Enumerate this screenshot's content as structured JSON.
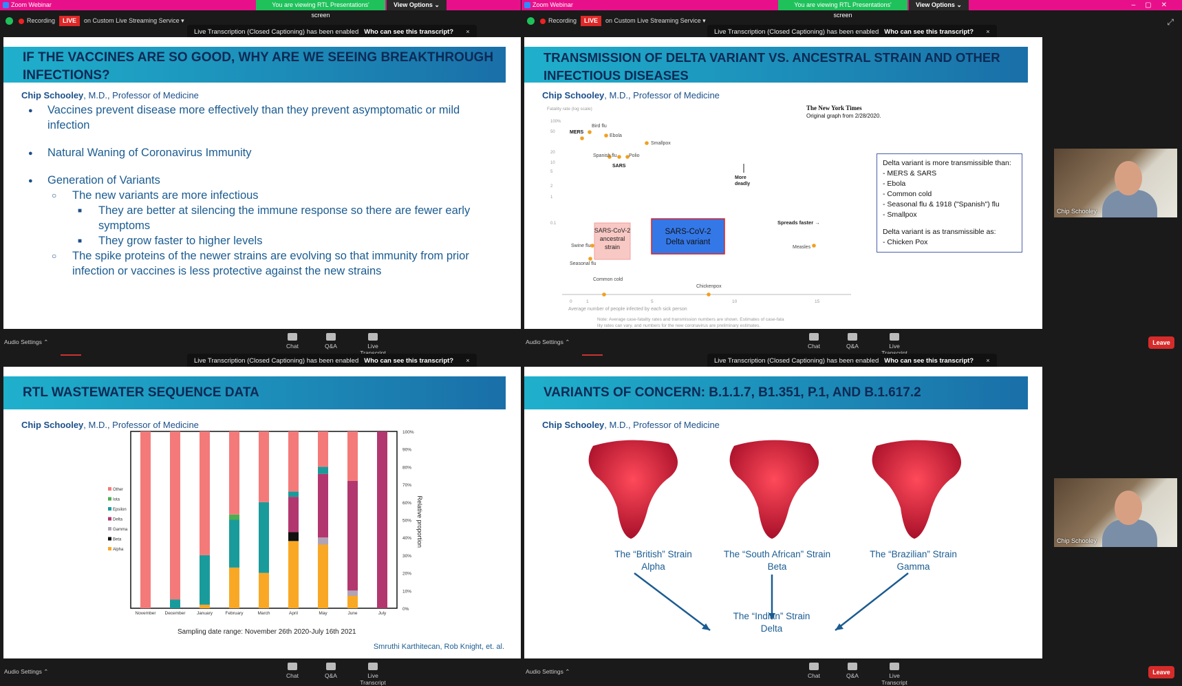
{
  "app": {
    "title": "Zoom Webinar",
    "banner": "You are viewing RTL Presentations' screen",
    "view_options": "View Options"
  },
  "recording": {
    "label": "Recording",
    "live": "LIVE",
    "service": "on Custom Live Streaming Service"
  },
  "toast": {
    "message": "Live Transcription (Closed Captioning) has been enabled",
    "link": "Who can see this transcript?",
    "close": "×"
  },
  "controls": {
    "audio": "Audio Settings",
    "chat": "Chat",
    "qa": "Q&A",
    "transcript": "Live Transcript",
    "leave": "Leave"
  },
  "participant": {
    "name": "Chip Schooley"
  },
  "author": {
    "name": "Chip Schooley",
    "title": ", M.D., Professor of Medicine"
  },
  "slide1": {
    "title_line1": "IF THE VACCINES ARE SO GOOD, WHY ARE WE SEEING BREAKTHROUGH",
    "title_line2": "INFECTIONS?",
    "b1": "Vaccines prevent disease more effectively than they prevent asymptomatic or mild infection",
    "b2": "Natural Waning of Coronavirus Immunity",
    "b3": "Generation of Variants",
    "b3a": "The new variants are more infectious",
    "b3a1": "They are better at silencing the immune response so there are fewer early symptoms",
    "b3a2": "They grow faster to higher levels",
    "b3b": "The spike proteins of the newer strains are evolving so that immunity from prior infection or vaccines is less protective against the new strains"
  },
  "slide2": {
    "title_line1": "TRANSMISSION OF DELTA VARIANT VS. ANCESTRAL STRAIN AND OTHER",
    "title_line2": "INFECTIOUS DISEASES",
    "nyt": "The New York Times",
    "nyt_sub": "Original graph from 2/28/2020.",
    "yaxis": "Fatality rate (log scale)",
    "xaxis": "Average number of people infected by each sick person",
    "more_deadly": "More deadly",
    "spreads_faster": "Spreads faster →",
    "ancestral": "SARS-CoV-2 ancestral strain",
    "delta": "SARS-CoV-2 Delta variant",
    "note": "Note: Average case-fatality rates and transmission numbers are shown. Estimates of case-fatality rates can vary, and numbers for the new coronavirus are preliminary estimates.",
    "info_title": "Delta variant is more transmissible than:",
    "info_items": [
      "MERS & SARS",
      "Ebola",
      "Common cold",
      "Seasonal flu & 1918 (\"Spanish\") flu",
      "Smallpox"
    ],
    "info_as": "Delta variant is as transmissible as:",
    "info_as_item": "- Chicken Pox",
    "points": [
      "MERS",
      "Bird flu",
      "Ebola",
      "Smallpox",
      "Spanish flu",
      "Polio",
      "SARS",
      "Swine flu",
      "Seasonal flu",
      "Common cold",
      "Chickenpox",
      "Measles"
    ],
    "yticks": [
      "100%",
      "50",
      "20",
      "10",
      "5",
      "2",
      "1",
      "0.1"
    ],
    "xticks": [
      "0",
      "1",
      "5",
      "10",
      "15"
    ]
  },
  "slide3": {
    "title": "RTL WASTEWATER SEQUENCE DATA",
    "xlabel": "Sampling date range: November 26th 2020-July 16th 2021",
    "ylabel": "Relative proportion",
    "credit": "Smruthi Karthitecan, Rob Knight, et. al."
  },
  "slide4": {
    "title": "VARIANTS OF CONCERN: B.1.1.7, B1.351, P.1, AND B.1.617.2",
    "british": "The “British” Strain",
    "alpha": "Alpha",
    "sa": "The “South African” Strain",
    "beta": "Beta",
    "brazil": "The “Brazilian” Strain",
    "gamma": "Gamma",
    "indian": "The “Indian” Strain",
    "delta": "Delta"
  },
  "chart_data": {
    "type": "bar",
    "categories": [
      "November",
      "December",
      "January",
      "February",
      "March",
      "April",
      "May",
      "June",
      "July"
    ],
    "series": [
      {
        "name": "Alpha",
        "color": "#f9a825",
        "values": [
          0,
          0,
          0.02,
          0.23,
          0.2,
          0.38,
          0.36,
          0.07,
          0
        ]
      },
      {
        "name": "Beta",
        "color": "#111111",
        "values": [
          0,
          0,
          0,
          0,
          0,
          0.05,
          0,
          0,
          0
        ]
      },
      {
        "name": "Gamma",
        "color": "#b0a3b5",
        "values": [
          0,
          0,
          0,
          0,
          0,
          0,
          0.04,
          0.03,
          0
        ]
      },
      {
        "name": "Delta",
        "color": "#b2376f",
        "values": [
          0,
          0,
          0,
          0,
          0,
          0.2,
          0.36,
          0.62,
          1.0
        ]
      },
      {
        "name": "Epsilon",
        "color": "#1a9b9b",
        "values": [
          0,
          0.05,
          0.28,
          0.27,
          0.4,
          0.03,
          0.04,
          0,
          0
        ]
      },
      {
        "name": "Iota",
        "color": "#4caf50",
        "values": [
          0,
          0,
          0,
          0.03,
          0,
          0,
          0,
          0,
          0
        ]
      },
      {
        "name": "Other",
        "color": "#f47a7a",
        "values": [
          1.0,
          0.95,
          0.7,
          0.47,
          0.4,
          0.34,
          0.2,
          0.28,
          0
        ]
      }
    ],
    "yticks": [
      "0%",
      "10%",
      "20%",
      "30%",
      "40%",
      "50%",
      "60%",
      "70%",
      "80%",
      "90%",
      "100%"
    ],
    "ylim": [
      0,
      1
    ],
    "legend": "left"
  }
}
